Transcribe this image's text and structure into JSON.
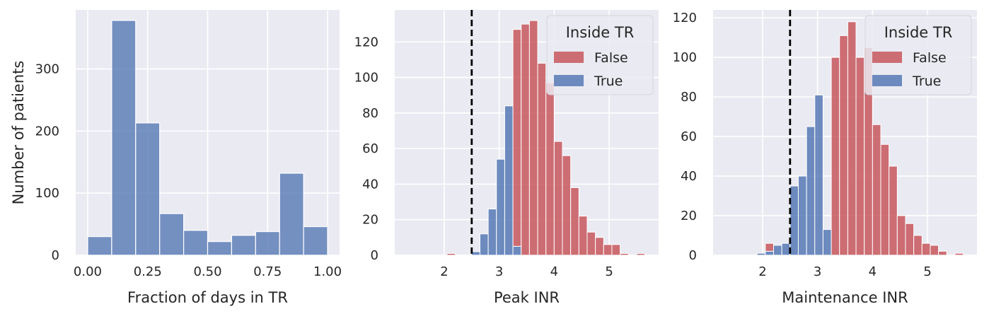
{
  "figure": {
    "background": "#ffffff",
    "axes_background": "#eaeaf2",
    "grid_color": "#ffffff"
  },
  "colors": {
    "true": "#4c72b0",
    "false": "#c44e52"
  },
  "chart_data": [
    {
      "type": "bar",
      "subtype": "histogram",
      "xlabel": "Fraction of days in TR",
      "ylabel": "Number of patients",
      "xlim": [
        -0.05,
        1.05
      ],
      "ylim": [
        0,
        395
      ],
      "xticks": [
        0,
        0.25,
        0.5,
        0.75,
        1
      ],
      "xtick_labels": [
        "0.00",
        "0.25",
        "0.50",
        "0.75",
        "1.00"
      ],
      "yticks": [
        0,
        100,
        200,
        300
      ],
      "ytick_labels": [
        "0",
        "100",
        "200",
        "300"
      ],
      "grid": true,
      "bin_width": 0.1,
      "series": [
        {
          "key": "all",
          "color": "#4c72b0",
          "bins": [
            0.0,
            0.1,
            0.2,
            0.3,
            0.4,
            0.5,
            0.6,
            0.7,
            0.8,
            0.9
          ],
          "values": [
            30,
            378,
            213,
            67,
            40,
            22,
            32,
            38,
            132,
            46
          ]
        }
      ]
    },
    {
      "type": "bar",
      "subtype": "stacked histogram",
      "xlabel": "Peak INR",
      "ylabel": "",
      "xlim": [
        1.1,
        5.9
      ],
      "ylim": [
        0,
        138
      ],
      "xticks": [
        2,
        3,
        4,
        5
      ],
      "xtick_labels": [
        "2",
        "3",
        "4",
        "5"
      ],
      "yticks": [
        0,
        20,
        40,
        60,
        80,
        100,
        120
      ],
      "ytick_labels": [
        "0",
        "20",
        "40",
        "60",
        "80",
        "100",
        "120"
      ],
      "grid": true,
      "bin_start": 1.3,
      "bin_width": 0.15,
      "threshold": 2.5,
      "legend": {
        "title": "Inside TR",
        "placement": "upper right"
      },
      "series": [
        {
          "name": "True",
          "key": "true",
          "values": [
            0,
            0,
            0,
            0,
            0,
            0,
            0,
            0,
            2,
            12,
            26,
            54,
            84,
            5,
            0,
            0,
            0,
            0,
            0,
            0,
            0,
            0,
            0,
            0,
            0,
            0,
            0,
            0,
            0
          ]
        },
        {
          "name": "False",
          "key": "false",
          "values": [
            0,
            0,
            0,
            0,
            0,
            1,
            0,
            0,
            0,
            0,
            0,
            0,
            0,
            122,
            130,
            132,
            108,
            97,
            64,
            56,
            38,
            22,
            13,
            10,
            6,
            6,
            1,
            0,
            1
          ]
        }
      ]
    },
    {
      "type": "bar",
      "subtype": "stacked histogram",
      "xlabel": "Maintenance INR",
      "ylabel": "",
      "xlim": [
        1.1,
        5.9
      ],
      "ylim": [
        0,
        124
      ],
      "xticks": [
        2,
        3,
        4,
        5
      ],
      "xtick_labels": [
        "2",
        "3",
        "4",
        "5"
      ],
      "yticks": [
        0,
        20,
        40,
        60,
        80,
        100,
        120
      ],
      "ytick_labels": [
        "0",
        "20",
        "40",
        "60",
        "80",
        "100",
        "120"
      ],
      "grid": true,
      "bin_start": 1.3,
      "bin_width": 0.15,
      "threshold": 2.5,
      "legend": {
        "title": "Inside TR",
        "placement": "upper right"
      },
      "series": [
        {
          "name": "True",
          "key": "true",
          "values": [
            0,
            0,
            0,
            0,
            1,
            2,
            5,
            6,
            35,
            40,
            65,
            81,
            13,
            0,
            0,
            0,
            0,
            0,
            0,
            0,
            0,
            0,
            0,
            0,
            0,
            0,
            0,
            0,
            0
          ]
        },
        {
          "name": "False",
          "key": "false",
          "values": [
            0,
            0,
            0,
            0,
            0,
            4,
            0,
            0,
            0,
            0,
            0,
            0,
            0,
            100,
            111,
            118,
            100,
            105,
            66,
            56,
            45,
            20,
            16,
            10,
            6,
            5,
            2,
            0,
            1
          ]
        }
      ]
    }
  ]
}
